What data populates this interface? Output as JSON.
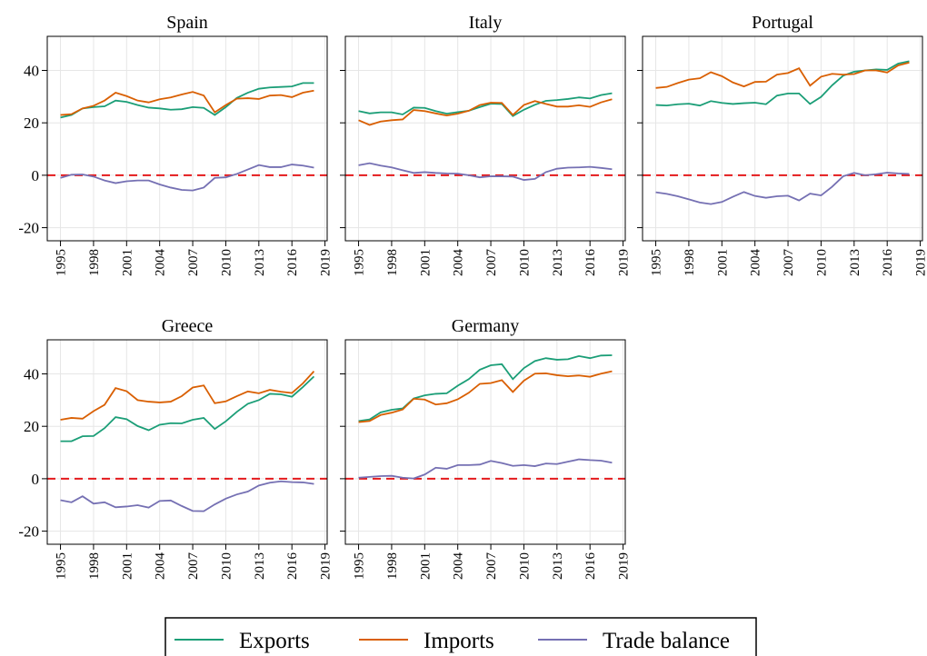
{
  "chart_data": [
    {
      "type": "line",
      "title": "Spain",
      "x": [
        1995,
        1996,
        1997,
        1998,
        1999,
        2000,
        2001,
        2002,
        2003,
        2004,
        2005,
        2006,
        2007,
        2008,
        2009,
        2010,
        2011,
        2012,
        2013,
        2014,
        2015,
        2016,
        2017,
        2018
      ],
      "series": [
        {
          "name": "Exports",
          "color": "#1b9e77",
          "values": [
            22,
            23,
            25.5,
            26,
            26.3,
            28.5,
            28,
            26.8,
            25.8,
            25.5,
            25,
            25.2,
            26,
            25.7,
            23,
            26,
            29.5,
            31.5,
            33,
            33.5,
            33.7,
            33.9,
            35.2,
            35.2
          ]
        },
        {
          "name": "Imports",
          "color": "#d95f02",
          "values": [
            23,
            23.3,
            25.5,
            26.5,
            28.5,
            31.5,
            30.2,
            28.5,
            27.8,
            29,
            29.7,
            30.8,
            31.8,
            30.4,
            24,
            26.8,
            29.2,
            29.4,
            29.1,
            30.4,
            30.6,
            29.8,
            31.5,
            32.3
          ]
        },
        {
          "name": "Trade balance",
          "color": "#7570b3",
          "values": [
            -1,
            0.2,
            0.3,
            -0.5,
            -2,
            -3,
            -2.3,
            -2,
            -2,
            -3.5,
            -4.7,
            -5.6,
            -5.8,
            -4.7,
            -1,
            -0.8,
            0.5,
            2.2,
            3.9,
            3.1,
            3.1,
            4.1,
            3.7,
            2.9
          ]
        }
      ],
      "xlim": [
        1993.8,
        2019.2
      ],
      "xticks": [
        1995,
        1998,
        2001,
        2004,
        2007,
        2010,
        2013,
        2016,
        2019
      ],
      "ylim": [
        -25,
        53
      ],
      "yticks": [
        -20,
        0,
        20,
        40
      ],
      "grid": true,
      "hline": 0,
      "hline_color": "#e41a1c"
    },
    {
      "type": "line",
      "title": "Italy",
      "x": [
        1995,
        1996,
        1997,
        1998,
        1999,
        2000,
        2001,
        2002,
        2003,
        2004,
        2005,
        2006,
        2007,
        2008,
        2009,
        2010,
        2011,
        2012,
        2013,
        2014,
        2015,
        2016,
        2017,
        2018
      ],
      "series": [
        {
          "name": "Exports",
          "color": "#1b9e77",
          "values": [
            24.5,
            23.6,
            24,
            24,
            23.2,
            25.8,
            25.7,
            24.5,
            23.5,
            24.1,
            24.6,
            26,
            27.3,
            27.2,
            22.6,
            25,
            26.9,
            28.4,
            28.7,
            29.1,
            29.7,
            29.3,
            30.6,
            31.3
          ]
        },
        {
          "name": "Imports",
          "color": "#d95f02",
          "values": [
            21,
            19.2,
            20.5,
            21,
            21.3,
            24.9,
            24.5,
            23.6,
            22.8,
            23.5,
            24.6,
            26.8,
            27.7,
            27.6,
            23,
            26.8,
            28.3,
            27.2,
            26.2,
            26.2,
            26.7,
            26.1,
            27.8,
            29
          ]
        },
        {
          "name": "Trade balance",
          "color": "#7570b3",
          "values": [
            3.8,
            4.6,
            3.7,
            3,
            1.9,
            0.9,
            1.2,
            0.9,
            0.7,
            0.6,
            0,
            -0.8,
            -0.4,
            -0.4,
            -0.5,
            -1.8,
            -1.4,
            1.2,
            2.5,
            2.9,
            3,
            3.2,
            2.8,
            2.3
          ]
        }
      ],
      "xlim": [
        1993.8,
        2019.2
      ],
      "xticks": [
        1995,
        1998,
        2001,
        2004,
        2007,
        2010,
        2013,
        2016,
        2019
      ],
      "ylim": [
        -25,
        53
      ],
      "yticks": [
        -20,
        0,
        20,
        40
      ],
      "grid": true,
      "hline": 0,
      "hline_color": "#e41a1c"
    },
    {
      "type": "line",
      "title": "Portugal",
      "x": [
        1995,
        1996,
        1997,
        1998,
        1999,
        2000,
        2001,
        2002,
        2003,
        2004,
        2005,
        2006,
        2007,
        2008,
        2009,
        2010,
        2011,
        2012,
        2013,
        2014,
        2015,
        2016,
        2017,
        2018
      ],
      "series": [
        {
          "name": "Exports",
          "color": "#1b9e77",
          "values": [
            26.8,
            26.6,
            27.1,
            27.3,
            26.6,
            28.3,
            27.6,
            27.2,
            27.5,
            27.7,
            27.1,
            30.4,
            31.2,
            31.2,
            27.2,
            29.9,
            34.3,
            38,
            39.5,
            40,
            40.4,
            40.2,
            42.6,
            43.5
          ]
        },
        {
          "name": "Imports",
          "color": "#d95f02",
          "values": [
            33.3,
            33.7,
            35.2,
            36.5,
            37,
            39.3,
            37.8,
            35.4,
            33.9,
            35.6,
            35.7,
            38.4,
            39,
            40.8,
            34.2,
            37.6,
            38.7,
            38.4,
            38.6,
            40,
            40,
            39.2,
            41.9,
            43
          ]
        },
        {
          "name": "Trade balance",
          "color": "#7570b3",
          "values": [
            -6.5,
            -7.1,
            -8,
            -9.2,
            -10.4,
            -11,
            -10.2,
            -8.2,
            -6.4,
            -7.9,
            -8.6,
            -8,
            -7.8,
            -9.6,
            -7,
            -7.7,
            -4.4,
            -0.4,
            0.9,
            0,
            0.4,
            1,
            0.7,
            0.5
          ]
        }
      ],
      "xlim": [
        1993.8,
        2019.2
      ],
      "xticks": [
        1995,
        1998,
        2001,
        2004,
        2007,
        2010,
        2013,
        2016,
        2019
      ],
      "ylim": [
        -25,
        53
      ],
      "yticks": [
        -20,
        0,
        20,
        40
      ],
      "grid": true,
      "hline": 0,
      "hline_color": "#e41a1c"
    },
    {
      "type": "line",
      "title": "Greece",
      "x": [
        1995,
        1996,
        1997,
        1998,
        1999,
        2000,
        2001,
        2002,
        2003,
        2004,
        2005,
        2006,
        2007,
        2008,
        2009,
        2010,
        2011,
        2012,
        2013,
        2014,
        2015,
        2016,
        2017,
        2018
      ],
      "series": [
        {
          "name": "Exports",
          "color": "#1b9e77",
          "values": [
            14.3,
            14.3,
            16.2,
            16.3,
            19.3,
            23.5,
            22.7,
            20.1,
            18.5,
            20.6,
            21.2,
            21.1,
            22.5,
            23.2,
            19,
            21.9,
            25.5,
            28.6,
            30,
            32.4,
            32.2,
            31.3,
            35,
            39
          ]
        },
        {
          "name": "Imports",
          "color": "#d95f02",
          "values": [
            22.5,
            23.2,
            22.9,
            25.8,
            28.2,
            34.6,
            33.4,
            30,
            29.4,
            29.1,
            29.4,
            31.5,
            34.8,
            35.6,
            28.8,
            29.5,
            31.5,
            33.3,
            32.6,
            33.9,
            33.2,
            32.7,
            36.4,
            41
          ]
        },
        {
          "name": "Trade balance",
          "color": "#7570b3",
          "values": [
            -8.2,
            -9,
            -6.7,
            -9.5,
            -9,
            -10.9,
            -10.6,
            -10.1,
            -11,
            -8.5,
            -8.3,
            -10.4,
            -12.3,
            -12.4,
            -9.8,
            -7.6,
            -6,
            -4.9,
            -2.6,
            -1.5,
            -1,
            -1.3,
            -1.4,
            -2
          ]
        }
      ],
      "xlim": [
        1993.8,
        2019.2
      ],
      "xticks": [
        1995,
        1998,
        2001,
        2004,
        2007,
        2010,
        2013,
        2016,
        2019
      ],
      "ylim": [
        -25,
        53
      ],
      "yticks": [
        -20,
        0,
        20,
        40
      ],
      "grid": true,
      "hline": 0,
      "hline_color": "#e41a1c"
    },
    {
      "type": "line",
      "title": "Germany",
      "x": [
        1995,
        1996,
        1997,
        1998,
        1999,
        2000,
        2001,
        2002,
        2003,
        2004,
        2005,
        2006,
        2007,
        2008,
        2009,
        2010,
        2011,
        2012,
        2013,
        2014,
        2015,
        2016,
        2017,
        2018
      ],
      "series": [
        {
          "name": "Exports",
          "color": "#1b9e77",
          "values": [
            22,
            22.6,
            25.3,
            26.3,
            26.8,
            30.6,
            31.8,
            32.4,
            32.6,
            35.5,
            38,
            41.6,
            43.3,
            43.7,
            38,
            42.2,
            44.9,
            46,
            45.4,
            45.6,
            46.8,
            46,
            47,
            47.1
          ]
        },
        {
          "name": "Imports",
          "color": "#d95f02",
          "values": [
            21.6,
            22,
            24.3,
            25.2,
            26.4,
            30.5,
            30.2,
            28.3,
            28.8,
            30.3,
            32.8,
            36.2,
            36.5,
            37.6,
            33.1,
            37.4,
            40.1,
            40.2,
            39.5,
            39.1,
            39.4,
            38.9,
            40.1,
            41
          ]
        },
        {
          "name": "Trade balance",
          "color": "#7570b3",
          "values": [
            0.4,
            0.7,
            1,
            1.1,
            0.4,
            0.1,
            1.6,
            4.2,
            3.8,
            5.2,
            5.2,
            5.4,
            6.8,
            6,
            4.9,
            5.2,
            4.8,
            5.8,
            5.6,
            6.5,
            7.4,
            7.1,
            6.9,
            6.1
          ]
        }
      ],
      "xlim": [
        1993.8,
        2019.2
      ],
      "xticks": [
        1995,
        1998,
        2001,
        2004,
        2007,
        2010,
        2013,
        2016,
        2019
      ],
      "ylim": [
        -25,
        53
      ],
      "yticks": [
        -20,
        0,
        20,
        40
      ],
      "grid": true,
      "hline": 0,
      "hline_color": "#e41a1c"
    }
  ]
}
